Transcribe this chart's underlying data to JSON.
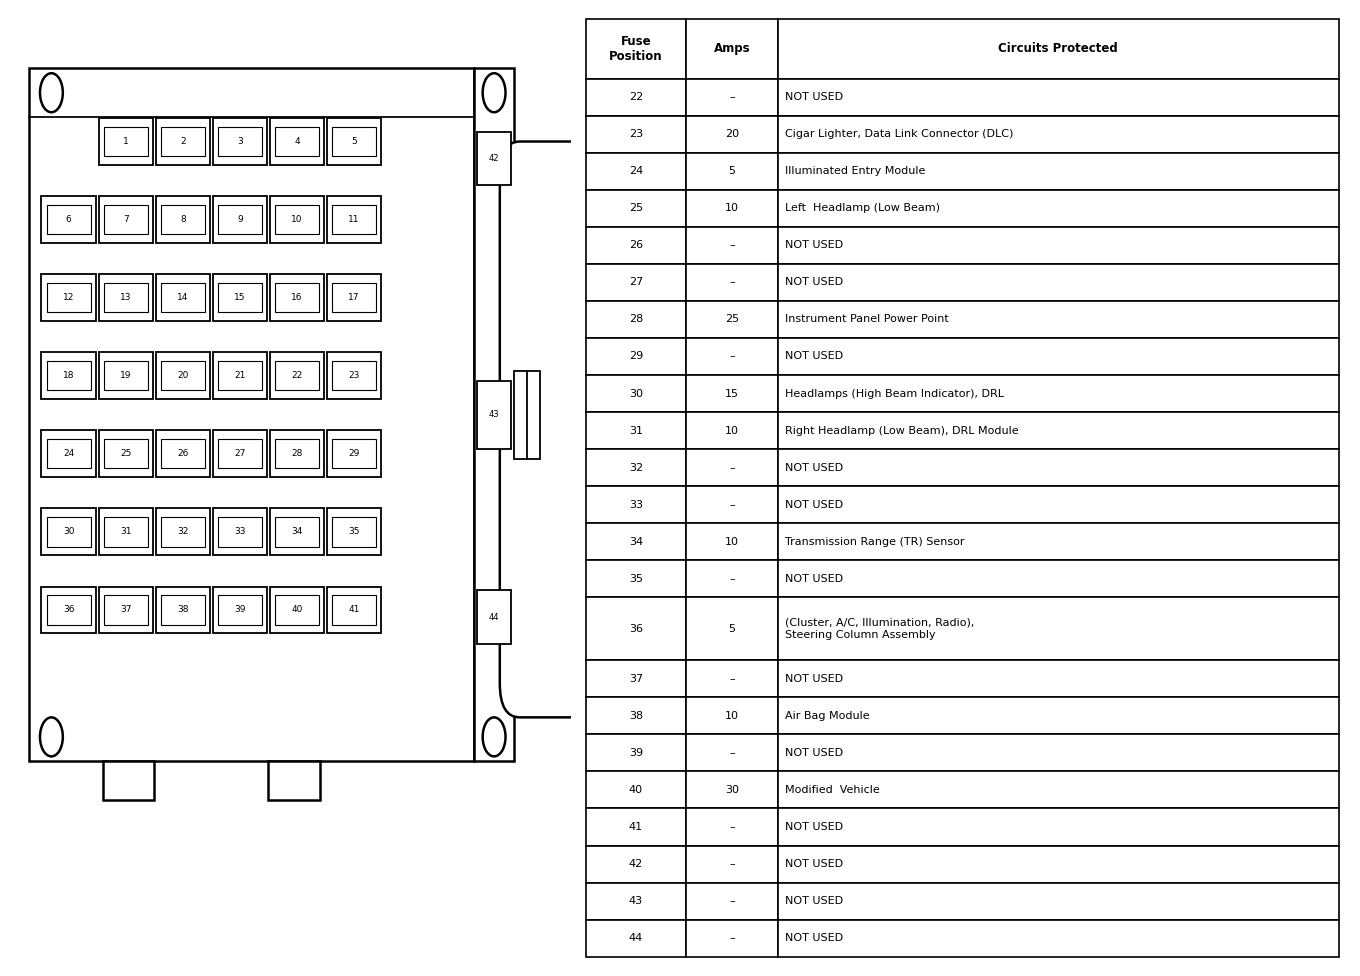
{
  "table_fuse_positions": [
    22,
    23,
    24,
    25,
    26,
    27,
    28,
    29,
    30,
    31,
    32,
    33,
    34,
    35,
    36,
    37,
    38,
    39,
    40,
    41,
    42,
    43,
    44
  ],
  "table_amps": [
    "–",
    "20",
    "5",
    "10",
    "–",
    "–",
    "25",
    "–",
    "15",
    "10",
    "–",
    "–",
    "10",
    "–",
    "5",
    "–",
    "10",
    "–",
    "30",
    "–",
    "–",
    "–",
    "–"
  ],
  "table_circuits": [
    "NOT USED",
    "Cigar Lighter, Data Link Connector (DLC)",
    "Illuminated Entry Module",
    "Left  Headlamp (Low Beam)",
    "NOT USED",
    "NOT USED",
    "Instrument Panel Power Point",
    "NOT USED",
    "Headlamps (High Beam Indicator), DRL",
    "Right Headlamp (Low Beam), DRL Module",
    "NOT USED",
    "NOT USED",
    "Transmission Range (TR) Sensor",
    "NOT USED",
    "(Cluster, A/C, Illumination, Radio),\nSteering Column Assembly",
    "NOT USED",
    "Air Bag Module",
    "NOT USED",
    "Modified  Vehicle",
    "NOT USED",
    "NOT USED",
    "NOT USED",
    "NOT USED"
  ],
  "col_header_pos": "Fuse\nPosition",
  "col_header_amps": "Amps",
  "col_header_circuits": "Circuits Protected",
  "fuse_rows": [
    [
      1,
      2,
      3,
      4,
      5
    ],
    [
      6,
      7,
      8,
      9,
      10,
      11
    ],
    [
      12,
      13,
      14,
      15,
      16,
      17
    ],
    [
      18,
      19,
      20,
      21,
      22,
      23
    ],
    [
      24,
      25,
      26,
      27,
      28,
      29
    ],
    [
      30,
      31,
      32,
      33,
      34,
      35
    ],
    [
      36,
      37,
      38,
      39,
      40,
      41
    ]
  ],
  "bg_color": "#ffffff",
  "line_color": "#000000"
}
